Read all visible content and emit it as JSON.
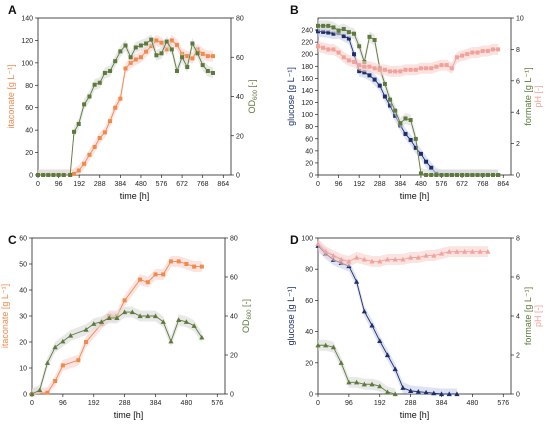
{
  "colors": {
    "orange": "#f08a4b",
    "green": "#5d7a3a",
    "navy": "#1b2f6b",
    "pink": "#f2a29a",
    "shade_gray": "#d9d9d9",
    "shade_blue": "#c9cfe8",
    "shade_pink": "#f6d0cb"
  },
  "chart_data": [
    {
      "id": "A",
      "panel_label": "A",
      "type": "line",
      "xlabel": "time [h]",
      "ylabel_left": "itaconate [g L⁻¹]",
      "ylabel_right": "OD",
      "ylabel_right_sub": "600",
      "ylabel_right_unit": " [-]",
      "xlim": [
        0,
        900
      ],
      "ylim_left": [
        0,
        140
      ],
      "ylim_right": [
        0,
        80
      ],
      "xticks": [
        0,
        96,
        192,
        288,
        384,
        480,
        576,
        672,
        768,
        864
      ],
      "yticks_left": [
        0,
        20,
        40,
        60,
        80,
        100,
        120,
        140
      ],
      "yticks_right": [
        0,
        20,
        40,
        60,
        80
      ],
      "series": [
        {
          "axis": "left",
          "color": "orange",
          "marker": "square",
          "shade": "shade_pink",
          "x": [
            0,
            24,
            48,
            72,
            96,
            120,
            150,
            168,
            190,
            215,
            240,
            264,
            288,
            312,
            336,
            360,
            384,
            408,
            432,
            456,
            480,
            504,
            528,
            552,
            576,
            600,
            624,
            648,
            672,
            696,
            720,
            744,
            768,
            792,
            816
          ],
          "y": [
            0,
            0,
            0,
            0,
            0,
            0,
            0,
            1,
            4,
            10,
            18,
            25,
            33,
            38,
            48,
            60,
            68,
            95,
            100,
            103,
            105,
            110,
            115,
            120,
            118,
            112,
            120,
            116,
            108,
            106,
            104,
            112,
            108,
            106,
            106
          ]
        },
        {
          "axis": "right",
          "color": "green",
          "marker": "square",
          "shade": "shade_gray",
          "x": [
            0,
            24,
            48,
            72,
            96,
            120,
            150,
            168,
            190,
            215,
            240,
            264,
            288,
            312,
            336,
            360,
            384,
            408,
            432,
            456,
            480,
            504,
            528,
            552,
            576,
            600,
            624,
            648,
            672,
            696,
            720,
            744,
            768,
            792,
            816
          ],
          "y": [
            0,
            0,
            0,
            0,
            0,
            0,
            0,
            22,
            26,
            36,
            40,
            46,
            47,
            52,
            53,
            58,
            63,
            66,
            60,
            65,
            66,
            67,
            69,
            61,
            62,
            68,
            64,
            53,
            60,
            55,
            67,
            62,
            56,
            53,
            52
          ]
        }
      ]
    },
    {
      "id": "B",
      "panel_label": "B",
      "type": "line",
      "xlabel": "time [h]",
      "ylabel_left": "glucose [g L⁻¹]",
      "ylabel_right": "formate [g L⁻¹]",
      "ylabel_right2": "pH [-]",
      "xlim": [
        0,
        900
      ],
      "ylim_left": [
        0,
        260
      ],
      "ylim_right": [
        0,
        10
      ],
      "xticks": [
        0,
        96,
        192,
        288,
        384,
        480,
        576,
        672,
        768,
        864
      ],
      "yticks_left": [
        0,
        20,
        40,
        60,
        80,
        100,
        120,
        140,
        160,
        180,
        200,
        220,
        240
      ],
      "yticks_right": [
        0,
        2,
        4,
        6,
        8,
        10
      ],
      "series": [
        {
          "axis": "left",
          "color": "navy",
          "marker": "square",
          "shade": "shade_blue",
          "x": [
            0,
            24,
            48,
            72,
            96,
            120,
            144,
            168,
            192,
            216,
            240,
            264,
            288,
            312,
            336,
            360,
            384,
            408,
            432,
            456,
            480,
            504,
            528,
            552,
            576,
            600,
            624,
            648,
            672,
            696,
            720,
            744,
            768,
            792,
            816,
            840
          ],
          "y": [
            238,
            237,
            236,
            234,
            235,
            230,
            226,
            200,
            172,
            170,
            165,
            158,
            148,
            130,
            115,
            98,
            82,
            68,
            58,
            45,
            35,
            22,
            12,
            2,
            0,
            0,
            0,
            0,
            0,
            0,
            0,
            0,
            0,
            0,
            0,
            0
          ]
        },
        {
          "axis": "right",
          "color": "green",
          "marker": "square",
          "shade": "shade_gray",
          "x": [
            0,
            24,
            48,
            72,
            96,
            120,
            144,
            168,
            192,
            216,
            240,
            264,
            288,
            312,
            336,
            360,
            384,
            408,
            432,
            456,
            480,
            504,
            528,
            552,
            576,
            600,
            624,
            648,
            672,
            696,
            720,
            744,
            768,
            792,
            816,
            840
          ],
          "y": [
            9.5,
            9.5,
            9.5,
            9.4,
            9.2,
            9.3,
            9.1,
            9.0,
            8.2,
            7.2,
            8.8,
            8.6,
            6.8,
            5.8,
            4.8,
            4.1,
            3.3,
            3.6,
            3.5,
            2.3,
            0.1,
            0,
            0,
            0,
            0,
            0,
            0,
            0,
            0,
            0,
            0,
            0,
            0,
            0,
            0,
            0
          ]
        },
        {
          "axis": "right",
          "color": "pink",
          "marker": "square",
          "shade": "shade_pink",
          "x": [
            0,
            24,
            48,
            72,
            96,
            120,
            144,
            168,
            192,
            216,
            240,
            264,
            288,
            312,
            336,
            360,
            384,
            408,
            432,
            456,
            480,
            504,
            528,
            552,
            576,
            600,
            624,
            648,
            672,
            696,
            720,
            744,
            768,
            792,
            816,
            840
          ],
          "y": [
            8.2,
            8.1,
            8.0,
            8.0,
            7.8,
            7.5,
            7.3,
            7.2,
            7.0,
            6.9,
            6.9,
            6.8,
            6.7,
            6.7,
            6.6,
            6.6,
            6.6,
            6.7,
            6.7,
            6.7,
            6.8,
            6.8,
            6.8,
            6.9,
            7.0,
            7.0,
            6.8,
            7.5,
            7.6,
            7.7,
            7.8,
            7.8,
            7.9,
            7.9,
            8.0,
            8.0
          ]
        }
      ]
    },
    {
      "id": "C",
      "panel_label": "C",
      "type": "line",
      "xlabel": "time [h]",
      "ylabel_left": "itaconate [g L⁻¹]",
      "ylabel_right": "OD",
      "ylabel_right_sub": "600",
      "ylabel_right_unit": " [-]",
      "xlim": [
        0,
        600
      ],
      "ylim_left": [
        0,
        60
      ],
      "ylim_right": [
        0,
        80
      ],
      "xticks": [
        0,
        96,
        192,
        288,
        384,
        480,
        576
      ],
      "yticks_left": [
        0,
        10,
        20,
        30,
        40,
        50,
        60
      ],
      "yticks_right": [
        0,
        20,
        40,
        60,
        80
      ],
      "series": [
        {
          "axis": "left",
          "color": "orange",
          "marker": "square",
          "shade": "shade_pink",
          "x": [
            0,
            48,
            72,
            96,
            144,
            168,
            216,
            240,
            264,
            288,
            336,
            360,
            384,
            408,
            432,
            456,
            480,
            504,
            528
          ],
          "y": [
            0,
            0.5,
            5,
            11,
            13,
            20,
            27,
            30,
            30,
            36,
            44,
            43,
            46,
            46,
            51,
            51,
            50,
            49,
            49
          ]
        },
        {
          "axis": "right",
          "color": "green",
          "marker": "triangle",
          "shade": "shade_gray",
          "x": [
            0,
            24,
            48,
            72,
            96,
            120,
            168,
            192,
            216,
            240,
            264,
            288,
            312,
            336,
            360,
            384,
            408,
            432,
            456,
            480,
            504,
            528
          ],
          "y": [
            0,
            2,
            16,
            24,
            27,
            30,
            33,
            36,
            37,
            39,
            39,
            42,
            42,
            40,
            40,
            40,
            37,
            27,
            38,
            37,
            35,
            29
          ]
        }
      ]
    },
    {
      "id": "D",
      "panel_label": "D",
      "type": "line",
      "xlabel": "time [h]",
      "ylabel_left": "glucose [g L⁻¹]",
      "ylabel_right": "formate [g L⁻¹]",
      "ylabel_right2": "pH [-]",
      "xlim": [
        0,
        600
      ],
      "ylim_left": [
        0,
        100
      ],
      "ylim_right": [
        0,
        8
      ],
      "xticks": [
        0,
        96,
        192,
        288,
        384,
        480,
        576
      ],
      "yticks_left": [
        0,
        20,
        40,
        60,
        80,
        100
      ],
      "yticks_right": [
        0,
        2,
        4,
        6,
        8
      ],
      "series": [
        {
          "axis": "left",
          "color": "navy",
          "marker": "triangle",
          "shade": "shade_blue",
          "x": [
            0,
            24,
            48,
            72,
            96,
            120,
            144,
            168,
            192,
            216,
            240,
            264,
            288,
            312,
            336,
            360,
            384,
            408,
            432
          ],
          "y": [
            95,
            90,
            86,
            84,
            82,
            72,
            53,
            44,
            34,
            25,
            16,
            4,
            2,
            1.5,
            1,
            0.5,
            0,
            0,
            0
          ]
        },
        {
          "axis": "right",
          "color": "green",
          "marker": "triangle",
          "shade": "shade_gray",
          "x": [
            0,
            24,
            48,
            72,
            96,
            120,
            144,
            168,
            192,
            216,
            240
          ],
          "y": [
            2.5,
            2.5,
            2.4,
            1.6,
            0.6,
            0.6,
            0.5,
            0.5,
            0.4,
            0.1,
            0
          ]
        },
        {
          "axis": "right",
          "color": "pink",
          "marker": "triangle",
          "shade": "shade_pink",
          "x": [
            0,
            24,
            48,
            72,
            96,
            120,
            144,
            168,
            192,
            216,
            240,
            264,
            288,
            312,
            336,
            360,
            384,
            408,
            432,
            456,
            480,
            504,
            528
          ],
          "y": [
            7.7,
            7.3,
            7.1,
            6.9,
            6.8,
            7.0,
            6.9,
            6.8,
            6.8,
            6.9,
            6.9,
            6.9,
            7.0,
            7.0,
            7.1,
            7.1,
            7.2,
            7.3,
            7.3,
            7.3,
            7.3,
            7.3,
            7.3
          ]
        }
      ]
    }
  ]
}
